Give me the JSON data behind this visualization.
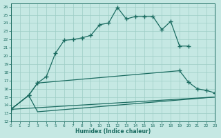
{
  "xlabel": "Humidex (Indice chaleur)",
  "bg_color": "#c5e8e3",
  "grid_color": "#9ecdc6",
  "line_color": "#1a6b60",
  "xlim": [
    0,
    23
  ],
  "ylim": [
    12,
    26.4
  ],
  "xtick_vals": [
    0,
    1,
    2,
    3,
    4,
    5,
    6,
    7,
    8,
    9,
    10,
    11,
    12,
    13,
    14,
    15,
    16,
    17,
    18,
    19,
    20,
    21,
    22,
    23
  ],
  "ytick_vals": [
    12,
    13,
    14,
    15,
    16,
    17,
    18,
    19,
    20,
    21,
    22,
    23,
    24,
    25,
    26
  ],
  "curve1_x": [
    0,
    2,
    3,
    4,
    5,
    6,
    7,
    8,
    9,
    10,
    11,
    12,
    13,
    14,
    15,
    16,
    17,
    18,
    19,
    20
  ],
  "curve1_y": [
    13.5,
    15.2,
    16.7,
    17.5,
    20.3,
    21.9,
    22.0,
    22.2,
    22.5,
    23.8,
    24.0,
    25.9,
    24.5,
    24.8,
    24.8,
    24.8,
    23.2,
    24.2,
    21.2,
    21.2
  ],
  "curve2_x": [
    0,
    2,
    3,
    19,
    20,
    21,
    22,
    23
  ],
  "curve2_y": [
    13.5,
    15.2,
    16.7,
    18.2,
    16.8,
    16.0,
    15.8,
    15.5
  ],
  "curve3_x": [
    0,
    2,
    3,
    23
  ],
  "curve3_y": [
    13.5,
    15.2,
    13.2,
    15.0
  ],
  "curve4_x": [
    0,
    23
  ],
  "curve4_y": [
    13.5,
    15.0
  ]
}
